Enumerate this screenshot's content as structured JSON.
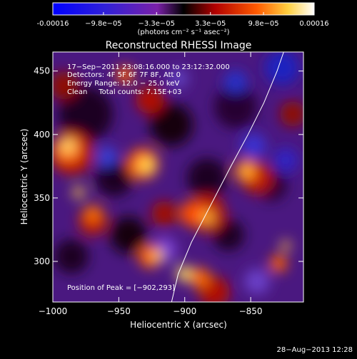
{
  "colorbar": {
    "tick_labels": [
      "-0.00016",
      "−9.8e−05",
      "−3.3e−05",
      "3.3e−05",
      "9.8e−05",
      "0.00016"
    ],
    "tick_values": [
      -0.00016,
      -9.8e-05,
      -3.3e-05,
      3.3e-05,
      9.8e-05,
      0.00016
    ],
    "unit_label": "(photons cm⁻² s⁻¹ asec⁻²)",
    "range": [
      -0.00016,
      0.00016
    ]
  },
  "chart_data": {
    "type": "heatmap",
    "title": "Reconstructed RHESSI Image",
    "xlabel": "Heliocentric X (arcsec)",
    "ylabel": "Heliocentric Y (arcsec)",
    "xlim": [
      -1000,
      -810
    ],
    "ylim": [
      268,
      465
    ],
    "xticks": [
      -1000,
      -950,
      -900,
      -850
    ],
    "xtick_labels": [
      "−1000",
      "−950",
      "−900",
      "−850"
    ],
    "yticks": [
      300,
      350,
      400,
      450
    ],
    "ytick_labels": [
      "300",
      "350",
      "400",
      "450"
    ],
    "colormap": [
      "#0000ff",
      "#4a0a8f",
      "#8a3fd0",
      "#5a0000",
      "#c01000",
      "#ff6a00",
      "#ffd040",
      "#ffffff"
    ],
    "annotations": [
      "17−Sep−2011 23:08:16.000 to 23:12:32.000",
      "Detectors: 4F 5F 6F 7F 8F, Att 0",
      "Energy Range: 12.0 − 25.0 keV",
      "Clean     Total counts: 7.15E+03"
    ],
    "peak_label": "Position of Peak = [−902,293]",
    "peak": [
      -902,
      293
    ],
    "limb": [
      [
        -910,
        268
      ],
      [
        -905,
        290
      ],
      [
        -895,
        315
      ],
      [
        -880,
        345
      ],
      [
        -865,
        375
      ],
      [
        -852,
        400
      ],
      [
        -840,
        425
      ],
      [
        -830,
        450
      ],
      [
        -825,
        465
      ]
    ]
  },
  "footer": {
    "timestamp": "28−Aug−2013 12:28"
  }
}
